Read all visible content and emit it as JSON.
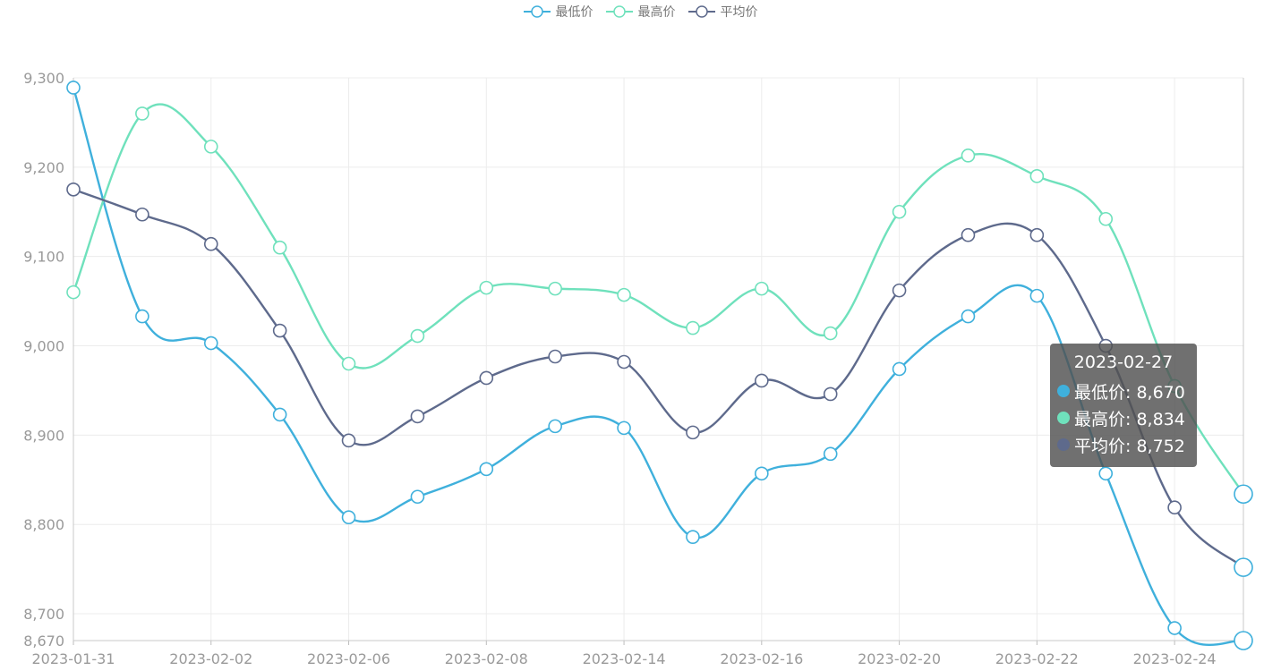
{
  "legend": {
    "items": [
      {
        "name": "最低价",
        "color": "#3fb0dc"
      },
      {
        "name": "最高价",
        "color": "#6fe1bc"
      },
      {
        "name": "平均价",
        "color": "#5e6a8c"
      }
    ]
  },
  "tooltip": {
    "title": "2023-02-27",
    "rows": [
      {
        "text": "最低价: 8,670",
        "color": "#3fb0dc"
      },
      {
        "text": "最高价: 8,834",
        "color": "#6fe1bc"
      },
      {
        "text": "平均价: 8,752",
        "color": "#5e6a8c"
      }
    ]
  },
  "chart_data": {
    "type": "line",
    "smooth": true,
    "x": [
      "2023-01-31",
      "2023-02-01",
      "2023-02-02",
      "2023-02-03",
      "2023-02-06",
      "2023-02-07",
      "2023-02-08",
      "2023-02-09",
      "2023-02-14",
      "2023-02-15",
      "2023-02-16",
      "2023-02-17",
      "2023-02-20",
      "2023-02-21",
      "2023-02-22",
      "2023-02-23",
      "2023-02-24",
      "2023-02-27"
    ],
    "x_tick_labels": [
      "2023-01-31",
      "2023-02-02",
      "2023-02-06",
      "2023-02-08",
      "2023-02-14",
      "2023-02-16",
      "2023-02-20",
      "2023-02-22",
      "2023-02-24"
    ],
    "series": [
      {
        "name": "最低价",
        "color": "#3fb0dc",
        "values": [
          9289,
          9033,
          9003,
          8923,
          8808,
          8831,
          8862,
          8910,
          8908,
          8786,
          8857,
          8879,
          8974,
          9033,
          9056,
          8857,
          8684,
          8670
        ]
      },
      {
        "name": "最高价",
        "color": "#6fe1bc",
        "values": [
          9060,
          9260,
          9223,
          9110,
          8980,
          9011,
          9065,
          9064,
          9057,
          9020,
          9064,
          9014,
          9150,
          9213,
          9190,
          9142,
          8955,
          8834
        ]
      },
      {
        "name": "平均价",
        "color": "#5e6a8c",
        "values": [
          9175,
          9147,
          9114,
          9017,
          8894,
          8921,
          8964,
          8988,
          8982,
          8903,
          8961,
          8946,
          9062,
          9124,
          9124,
          9000,
          8819,
          8752
        ]
      }
    ],
    "y_tick_labels": [
      "8,670",
      "8,700",
      "8,800",
      "8,900",
      "9,000",
      "9,100",
      "9,200",
      "9,300"
    ],
    "ylim": [
      8670,
      9300
    ],
    "grid": true,
    "legend_position": "top-center",
    "highlighted_category": "2023-02-27"
  }
}
